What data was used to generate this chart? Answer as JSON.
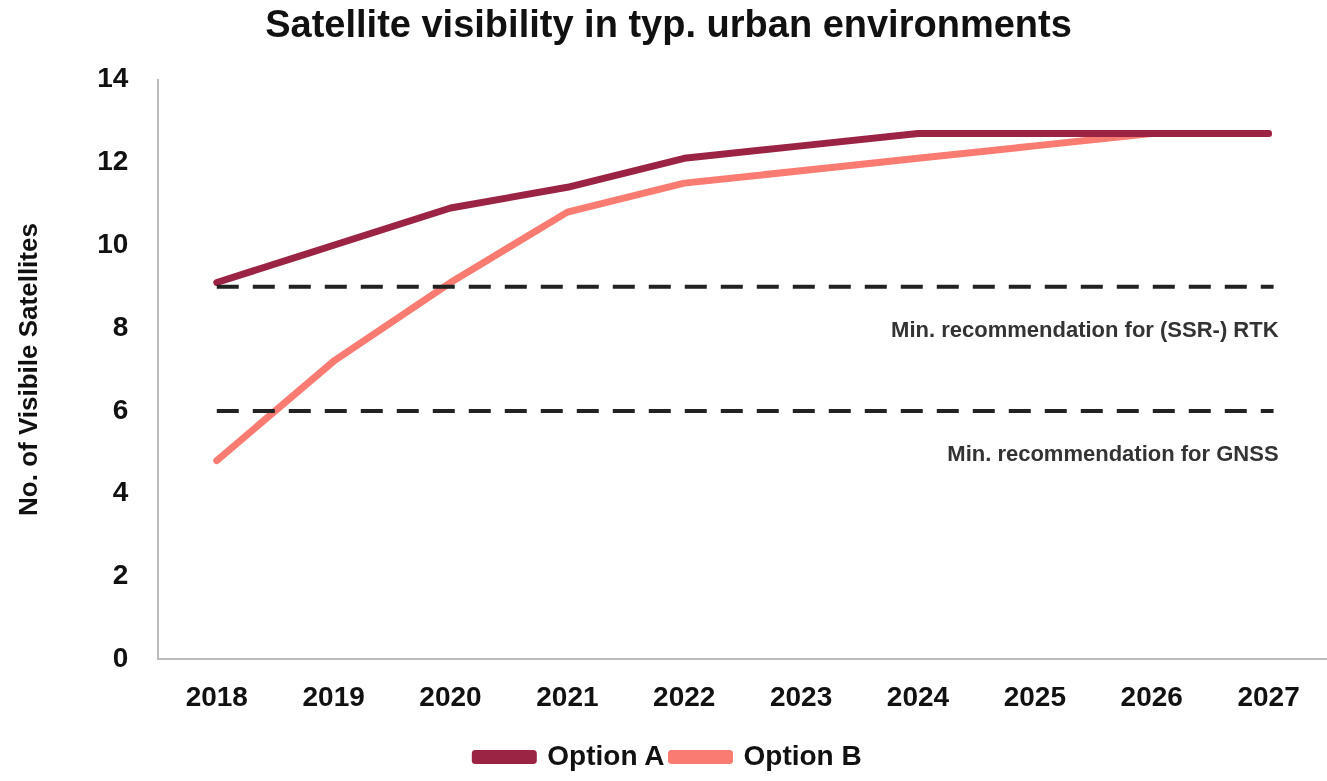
{
  "chart_data": {
    "type": "line",
    "title": "Satellite visibility in typ. urban environments",
    "ylabel": "No. of Visibile Satellites",
    "categories": [
      "2018",
      "2019",
      "2020",
      "2021",
      "2022",
      "2023",
      "2024",
      "2025",
      "2026",
      "2027"
    ],
    "series": [
      {
        "name": "Option A",
        "color": "#9b2445",
        "values": [
          9.1,
          10.0,
          10.9,
          11.4,
          12.1,
          12.4,
          12.7,
          12.7,
          12.7,
          12.7
        ]
      },
      {
        "name": "Option B",
        "color": "#f97b72",
        "values": [
          4.8,
          7.2,
          9.1,
          10.8,
          11.5,
          11.8,
          12.1,
          12.4,
          12.7,
          12.7
        ]
      }
    ],
    "ylim": [
      0,
      14
    ],
    "yticks": [
      0,
      2,
      4,
      6,
      8,
      10,
      12,
      14
    ],
    "grid": false,
    "legend": "bottom",
    "marker": "none",
    "line_style": "solid",
    "ref_lines": [
      {
        "axis": "y",
        "value": 9,
        "label": "Min. recommendation for (SSR-) RTK",
        "color": "#222222",
        "line_style": "dashed"
      },
      {
        "axis": "y",
        "value": 6,
        "label": "Min. recommendation for GNSS",
        "color": "#222222",
        "line_style": "dashed"
      }
    ]
  }
}
